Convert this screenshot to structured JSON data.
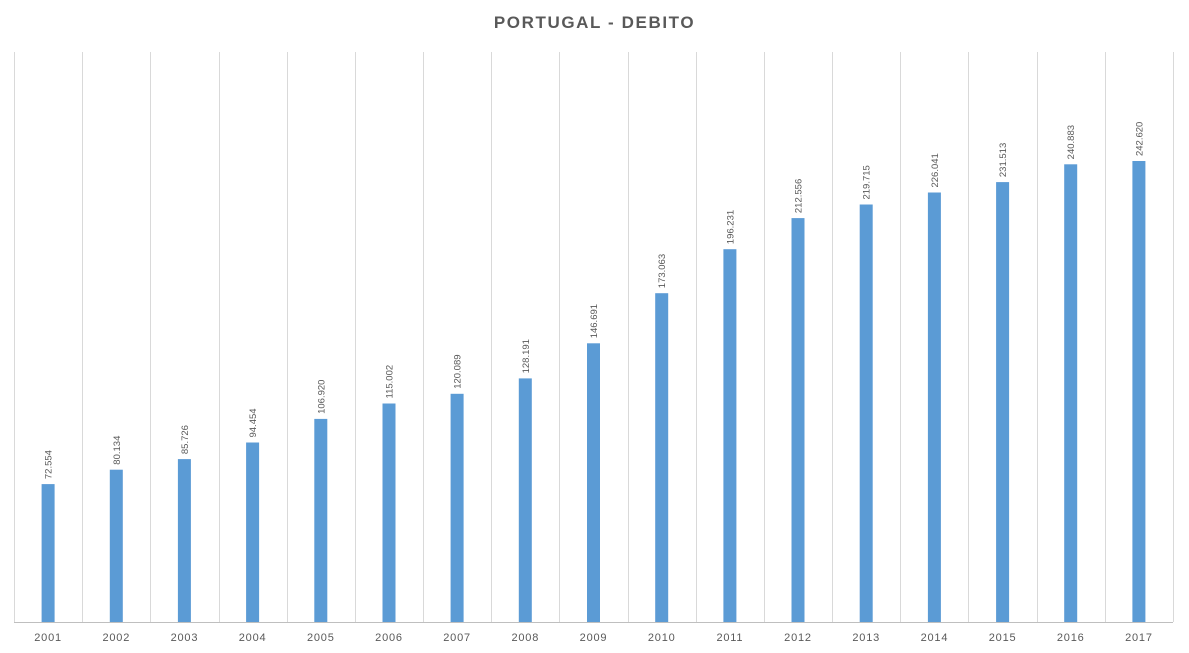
{
  "chart_data": {
    "type": "bar",
    "title": "PORTUGAL - DEBITO",
    "xlabel": "",
    "ylabel": "",
    "categories": [
      "2001",
      "2002",
      "2003",
      "2004",
      "2005",
      "2006",
      "2007",
      "2008",
      "2009",
      "2010",
      "2011",
      "2012",
      "2013",
      "2014",
      "2015",
      "2016",
      "2017"
    ],
    "values": [
      72554,
      80134,
      85726,
      94454,
      106920,
      115002,
      120089,
      128191,
      146691,
      173063,
      196231,
      212556,
      219715,
      226041,
      231513,
      240883,
      242620
    ],
    "data_labels": [
      "72.554",
      "80.134",
      "85.726",
      "94.454",
      "106.920",
      "115.002",
      "120.089",
      "128.191",
      "146.691",
      "173.063",
      "196.231",
      "212.556",
      "219.715",
      "226.041",
      "231.513",
      "240.883",
      "242.620"
    ],
    "ylim": [
      0,
      300000
    ],
    "gridlines": "vertical category separators",
    "legend": "none",
    "colors": {
      "bar": "#5B9BD5",
      "grid": "#D9D9D9",
      "axis": "#BFBFBF",
      "text": "#595959"
    }
  }
}
